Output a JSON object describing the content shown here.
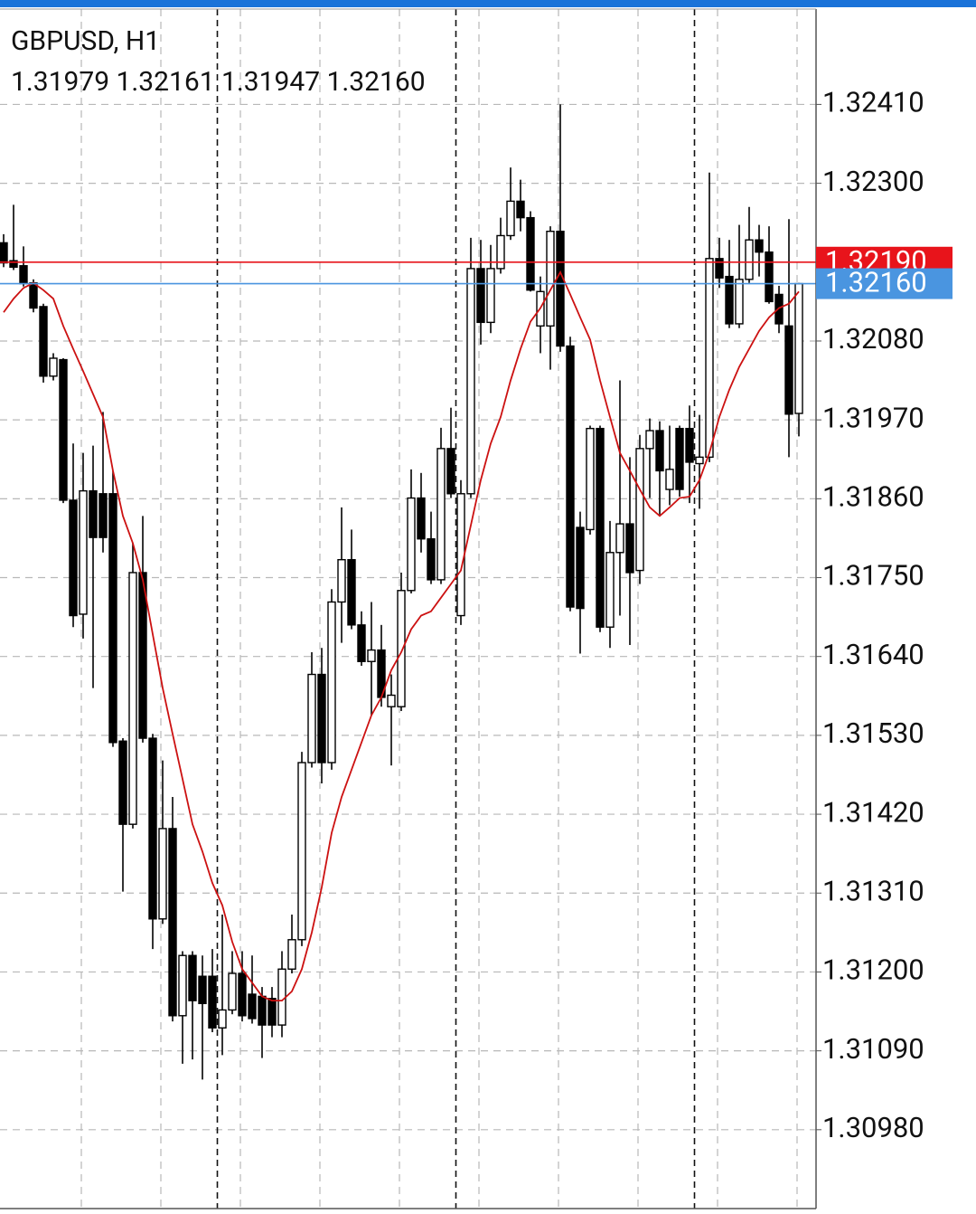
{
  "chart_data": {
    "type": "candlestick",
    "symbol": "GBPUSD, H1",
    "info": "1.31979 1.32161 1.31947 1.32160",
    "open": [
      1.32217,
      1.32192,
      1.32185,
      1.32161,
      1.32128,
      1.32031,
      1.32054,
      1.31858,
      1.31699,
      1.31871,
      1.31867,
      1.31867,
      1.31522,
      1.31406,
      1.31757,
      1.31526,
      1.31274,
      1.314,
      1.31139,
      1.31223,
      1.31194,
      1.31194,
      1.31122,
      1.31147,
      1.31198,
      1.31169,
      1.31166,
      1.31163,
      1.31126,
      1.31204,
      1.31245,
      1.31492,
      1.31615,
      1.31492,
      1.31716,
      1.31775,
      1.31684,
      1.31633,
      1.31649,
      1.3157,
      1.3157,
      1.31732,
      1.31861,
      1.31804,
      1.31747,
      1.3193,
      1.31697,
      1.31867,
      1.32181,
      1.32106,
      1.32181,
      1.32227,
      1.32275,
      1.32252,
      1.32101,
      1.32101,
      1.32233,
      1.32073,
      1.3182,
      1.31817,
      1.31958,
      1.31681,
      1.31785,
      1.31825,
      1.3176,
      1.3193,
      1.31955,
      1.31873,
      1.31958,
      1.31958,
      1.31909,
      1.31918,
      1.32195,
      1.3217,
      1.32104,
      1.32166,
      1.32221,
      1.32204,
      1.32145,
      1.32101,
      1.31979
    ],
    "high": [
      1.32229,
      1.3227,
      1.32212,
      1.32166,
      1.32132,
      1.32063,
      1.32056,
      1.31937,
      1.31924,
      1.31934,
      1.31981,
      1.31899,
      1.31526,
      1.31798,
      1.31836,
      1.31532,
      1.31495,
      1.31444,
      1.31229,
      1.31229,
      1.31223,
      1.31232,
      1.3128,
      1.31229,
      1.31229,
      1.31223,
      1.31179,
      1.31179,
      1.31229,
      1.3128,
      1.31507,
      1.31646,
      1.31652,
      1.31734,
      1.31848,
      1.31817,
      1.31703,
      1.31716,
      1.31684,
      1.31615,
      1.31757,
      1.31901,
      1.31896,
      1.31842,
      1.31959,
      1.31987,
      1.31886,
      1.32224,
      1.32221,
      1.32214,
      1.32252,
      1.32322,
      1.32305,
      1.32261,
      1.3217,
      1.3224,
      1.3241,
      1.32086,
      1.31842,
      1.31962,
      1.31962,
      1.31829,
      1.32025,
      1.31918,
      1.31949,
      1.31972,
      1.31968,
      1.31962,
      1.31962,
      1.3199,
      1.31977,
      1.32315,
      1.32224,
      1.32221,
      1.32242,
      1.32267,
      1.32242,
      1.3224,
      1.32157,
      1.3225,
      1.32161
    ],
    "low": [
      1.32183,
      1.32179,
      1.32156,
      1.3212,
      1.32022,
      1.32025,
      1.31854,
      1.31681,
      1.31665,
      1.31596,
      1.31785,
      1.31514,
      1.31312,
      1.314,
      1.3152,
      1.31232,
      1.31267,
      1.31131,
      1.31072,
      1.31078,
      1.3105,
      1.31116,
      1.31084,
      1.31141,
      1.31131,
      1.31128,
      1.3108,
      1.31109,
      1.31109,
      1.31198,
      1.31236,
      1.31485,
      1.31463,
      1.31482,
      1.31659,
      1.31678,
      1.31627,
      1.31558,
      1.3157,
      1.31488,
      1.31564,
      1.31728,
      1.31785,
      1.31741,
      1.31741,
      1.31861,
      1.31684,
      1.31861,
      1.32075,
      1.32091,
      1.32174,
      1.32221,
      1.32233,
      1.32149,
      1.32063,
      1.3204,
      1.32065,
      1.31703,
      1.31644,
      1.3181,
      1.31674,
      1.31652,
      1.31697,
      1.31656,
      1.31741,
      1.31861,
      1.31838,
      1.31851,
      1.31863,
      1.31854,
      1.31846,
      1.31911,
      1.32154,
      1.32098,
      1.32098,
      1.32161,
      1.3217,
      1.32132,
      1.32091,
      1.31918,
      1.31947
    ],
    "close": [
      1.32189,
      1.32183,
      1.3216,
      1.32126,
      1.32031,
      1.32056,
      1.31858,
      1.31697,
      1.31871,
      1.31806,
      1.31806,
      1.3152,
      1.31406,
      1.31757,
      1.31526,
      1.31274,
      1.314,
      1.31139,
      1.31223,
      1.3116,
      1.31156,
      1.31122,
      1.31147,
      1.31198,
      1.31139,
      1.31135,
      1.31126,
      1.31126,
      1.31204,
      1.31245,
      1.31492,
      1.31615,
      1.31492,
      1.31716,
      1.31775,
      1.31684,
      1.31633,
      1.31649,
      1.31583,
      1.31586,
      1.31732,
      1.31861,
      1.31804,
      1.31747,
      1.3193,
      1.31867,
      1.31867,
      1.32181,
      1.32106,
      1.32181,
      1.32227,
      1.32275,
      1.32252,
      1.32151,
      1.32149,
      1.32233,
      1.32073,
      1.31709,
      1.31707,
      1.31958,
      1.31681,
      1.31785,
      1.31825,
      1.31757,
      1.3193,
      1.31955,
      1.31899,
      1.31901,
      1.31873,
      1.31911,
      1.31918,
      1.32195,
      1.32168,
      1.32104,
      1.32166,
      1.32221,
      1.32204,
      1.32135,
      1.32104,
      1.31978,
      1.3216
    ],
    "ma": {
      "color": "#cc1111",
      "values": [
        1.3212,
        1.32139,
        1.32154,
        1.32161,
        1.32151,
        1.32139,
        1.32101,
        1.32069,
        1.32038,
        1.32006,
        1.31974,
        1.31899,
        1.31836,
        1.31798,
        1.31747,
        1.31671,
        1.31596,
        1.31532,
        1.31469,
        1.31406,
        1.31368,
        1.31324,
        1.31293,
        1.31242,
        1.31204,
        1.31185,
        1.31166,
        1.3116,
        1.3116,
        1.31173,
        1.31204,
        1.31255,
        1.31318,
        1.31394,
        1.31444,
        1.31482,
        1.3152,
        1.31558,
        1.31583,
        1.31621,
        1.31646,
        1.31678,
        1.31697,
        1.31703,
        1.31722,
        1.31741,
        1.3176,
        1.31823,
        1.31886,
        1.31937,
        1.31974,
        1.32025,
        1.32069,
        1.32107,
        1.32126,
        1.32151,
        1.32176,
        1.32145,
        1.32113,
        1.32082,
        1.32025,
        1.31974,
        1.31924,
        1.31899,
        1.31873,
        1.31848,
        1.31836,
        1.31848,
        1.31861,
        1.31863,
        1.31886,
        1.31924,
        1.31974,
        1.32012,
        1.32044,
        1.32069,
        1.32094,
        1.32113,
        1.32126,
        1.32132,
        1.32149
      ]
    },
    "bull_color": "#ffffff",
    "bear_color": "#000000",
    "day_separators": [
      22,
      46,
      70
    ],
    "price_lines": [
      {
        "value": 1.3219,
        "label": "1.32190",
        "color": "#e8141b"
      },
      {
        "value": 1.3216,
        "label": "1.32160",
        "color": "#4a95e0"
      }
    ],
    "ylim": [
      1.3087,
      1.32543
    ],
    "yticks": [
      {
        "value": 1.3241,
        "label": "1.32410"
      },
      {
        "value": 1.323,
        "label": "1.32300"
      },
      {
        "value": 1.3219,
        "label": "1.32190"
      },
      {
        "value": 1.3208,
        "label": "1.32080"
      },
      {
        "value": 1.3197,
        "label": "1.31970"
      },
      {
        "value": 1.3186,
        "label": "1.31860"
      },
      {
        "value": 1.3175,
        "label": "1.31750"
      },
      {
        "value": 1.3164,
        "label": "1.31640"
      },
      {
        "value": 1.3153,
        "label": "1.31530"
      },
      {
        "value": 1.3142,
        "label": "1.31420"
      },
      {
        "value": 1.3131,
        "label": "1.31310"
      },
      {
        "value": 1.312,
        "label": "1.31200"
      },
      {
        "value": 1.3109,
        "label": "1.31090"
      },
      {
        "value": 1.3098,
        "label": "1.30980"
      }
    ],
    "grid": true
  }
}
